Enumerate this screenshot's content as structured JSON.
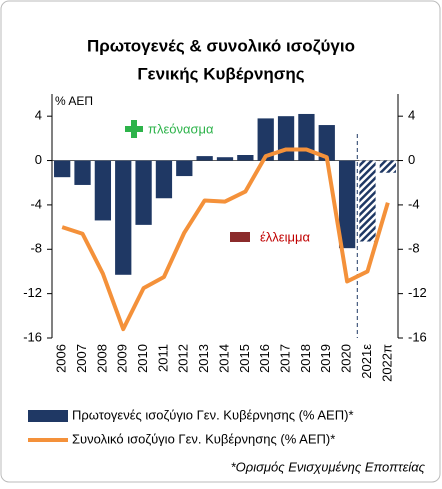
{
  "chart_data": {
    "type": "bar_line",
    "title": [
      "Πρωτογενές & συνολικό ισοζύγιο",
      "Γενικής Κυβέρνησης"
    ],
    "y_axis_label": "% ΑΕΠ",
    "annotations": [
      "πλεόνασμα",
      "έλλειμμα"
    ],
    "footnote": "*Ορισμός Ενισχυμένης Εποπτείας",
    "categories": [
      "2006",
      "2007",
      "2008",
      "2009",
      "2010",
      "2011",
      "2012",
      "2013",
      "2014",
      "2015",
      "2016",
      "2017",
      "2018",
      "2019",
      "2020",
      "2021ε",
      "2022π"
    ],
    "divider_after": "2020",
    "series": [
      {
        "name": "Πρωτογενές ισοζύγιο Γεν. Κυβέρνησης (% ΑΕΠ)*",
        "kind": "bar",
        "color": "#1f3864",
        "values": [
          -1.5,
          -2.2,
          -5.4,
          -10.3,
          -5.8,
          -3.4,
          -1.4,
          0.4,
          0.3,
          0.5,
          3.8,
          4.0,
          4.2,
          3.2,
          -7.9,
          -7.3,
          -1.1
        ],
        "hatched": [
          false,
          false,
          false,
          false,
          false,
          false,
          false,
          false,
          false,
          false,
          false,
          false,
          false,
          false,
          false,
          true,
          true
        ]
      },
      {
        "name": "Συνολικό ισοζύγιο Γεν. Κυβέρνησης (% ΑΕΠ)*",
        "kind": "line",
        "color": "#f4913a",
        "axis": "y2",
        "values": [
          -6.0,
          -6.6,
          -10.2,
          -15.2,
          -11.5,
          -10.5,
          -6.5,
          -3.6,
          -3.7,
          -2.8,
          0.4,
          1.0,
          1.0,
          0.3,
          -10.9,
          -10.0,
          -3.8
        ]
      }
    ],
    "ylim": [
      -16,
      6
    ],
    "yticks": [
      -16,
      -12,
      -8,
      -4,
      0,
      4
    ],
    "y2lim": [
      -16,
      6
    ],
    "y2ticks": [
      -16,
      -12,
      -8,
      -4,
      0,
      4
    ]
  }
}
